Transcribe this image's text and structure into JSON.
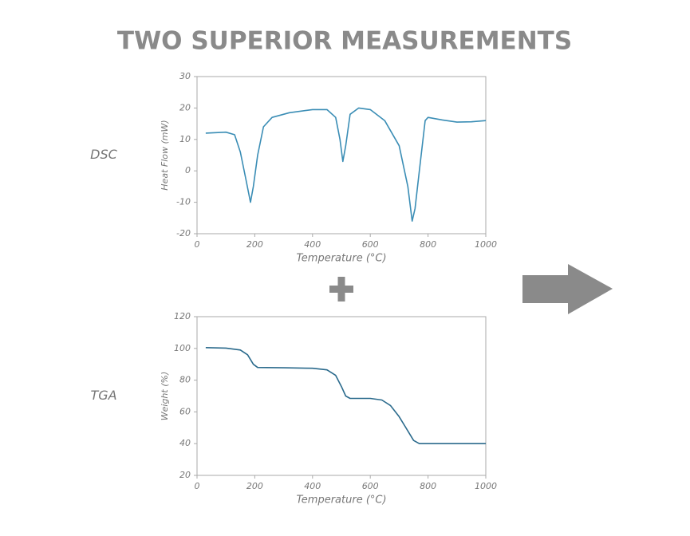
{
  "title": "TWO SUPERIOR MEASUREMENTS",
  "chart_data": [
    {
      "type": "line",
      "label": "DSC",
      "xlabel": "Temperature (°C)",
      "ylabel": "Heat Flow (mW)",
      "x": [
        30,
        100,
        130,
        150,
        170,
        185,
        195,
        210,
        230,
        260,
        320,
        400,
        450,
        480,
        495,
        505,
        515,
        530,
        560,
        600,
        650,
        700,
        730,
        745,
        755,
        770,
        790,
        800,
        850,
        900,
        950,
        1000
      ],
      "values": [
        12,
        12.3,
        11.5,
        6,
        -3,
        -10,
        -5,
        5,
        14,
        17,
        18.5,
        19.5,
        19.5,
        17,
        10,
        3,
        8,
        18,
        20,
        19.5,
        16,
        8,
        -5,
        -16,
        -12,
        0,
        16,
        17,
        16.2,
        15.5,
        15.6,
        16
      ],
      "color": "#3a8db5",
      "xlim": [
        0,
        1000
      ],
      "xticks": [
        0,
        200,
        400,
        600,
        800,
        1000
      ],
      "ylim": [
        -20,
        30
      ],
      "yticks": [
        -20,
        -10,
        0,
        10,
        20,
        30
      ]
    },
    {
      "type": "line",
      "label": "TGA",
      "xlabel": "Temperature (°C)",
      "ylabel": "Weight (%)",
      "x": [
        30,
        100,
        150,
        175,
        195,
        210,
        300,
        400,
        450,
        480,
        500,
        515,
        530,
        600,
        640,
        670,
        700,
        730,
        750,
        770,
        800,
        900,
        1000
      ],
      "values": [
        100.5,
        100.2,
        99,
        96,
        90,
        88,
        87.8,
        87.5,
        86.5,
        83,
        76,
        70,
        68.5,
        68.5,
        67.5,
        64,
        57,
        48,
        42,
        40,
        40,
        40,
        40
      ],
      "color": "#2a6a8c",
      "xlim": [
        0,
        1000
      ],
      "xticks": [
        0,
        200,
        400,
        600,
        800,
        1000
      ],
      "ylim": [
        20,
        120
      ],
      "yticks": [
        20,
        40,
        60,
        80,
        100,
        120
      ]
    }
  ]
}
